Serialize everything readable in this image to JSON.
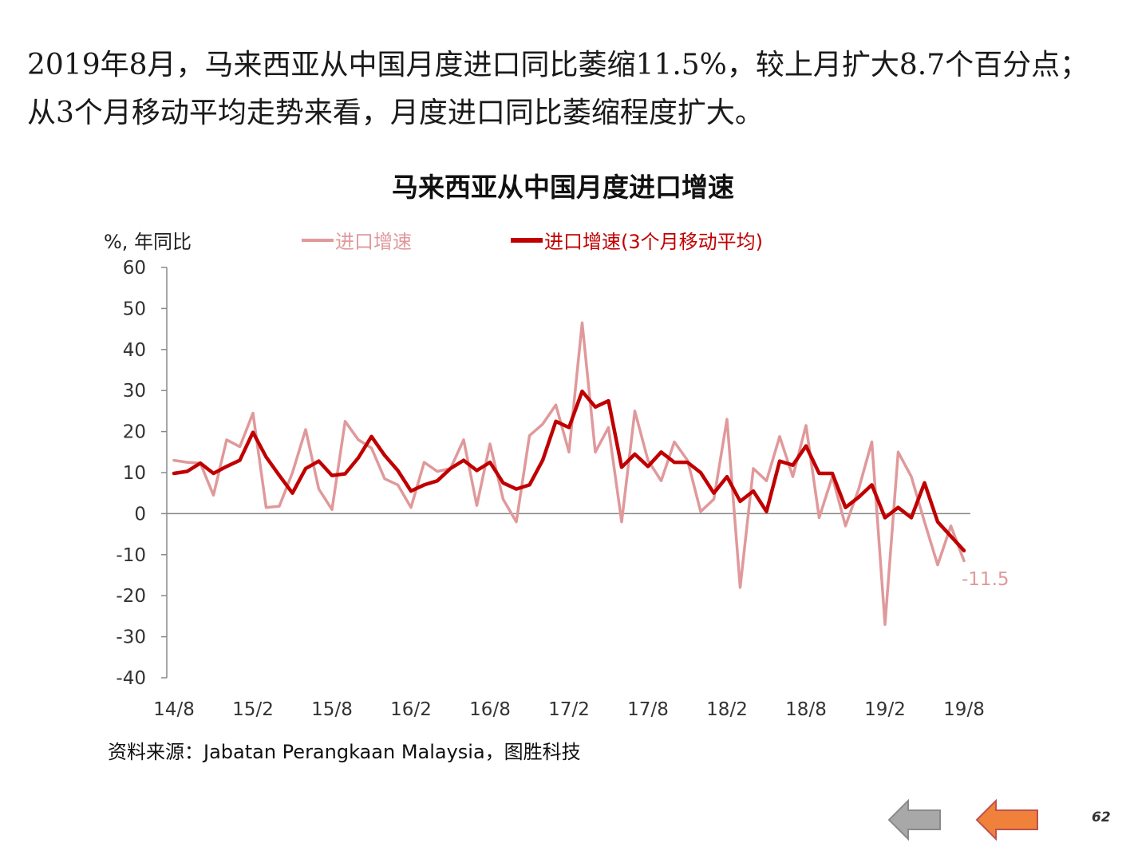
{
  "headline": "2019年8月，马来西亚从中国月度进口同比萎缩11.5%，较上月扩大8.7个百分点；从3个月移动平均走势来看，月度进口同比萎缩程度扩大。",
  "source": "资料来源：Jabatan Perangkaan Malaysia，图胜科技",
  "page_number": "62",
  "nav": {
    "prev_icon": "left-arrow-gray",
    "next_icon": "left-arrow-orange"
  },
  "colors": {
    "monthly": "#e0999b",
    "moving_avg": "#c00000",
    "nav_prev": "#a8a8a8",
    "nav_next": "#f0813a"
  },
  "chart_data": {
    "type": "line",
    "title": "马来西亚从中国月度进口增速",
    "ylabel": "%, 年同比",
    "ylim": [
      -40,
      60
    ],
    "yticks": [
      60,
      50,
      40,
      30,
      20,
      10,
      0,
      -10,
      -20,
      -30,
      -40
    ],
    "xticks": [
      "14/8",
      "15/2",
      "15/8",
      "16/2",
      "16/8",
      "17/2",
      "17/8",
      "18/2",
      "18/8",
      "19/2",
      "19/8"
    ],
    "x": [
      "14/8",
      "14/9",
      "14/10",
      "14/11",
      "14/12",
      "15/1",
      "15/2",
      "15/3",
      "15/4",
      "15/5",
      "15/6",
      "15/7",
      "15/8",
      "15/9",
      "15/10",
      "15/11",
      "15/12",
      "16/1",
      "16/2",
      "16/3",
      "16/4",
      "16/5",
      "16/6",
      "16/7",
      "16/8",
      "16/9",
      "16/10",
      "16/11",
      "16/12",
      "17/1",
      "17/2",
      "17/3",
      "17/4",
      "17/5",
      "17/6",
      "17/7",
      "17/8",
      "17/9",
      "17/10",
      "17/11",
      "17/12",
      "18/1",
      "18/2",
      "18/3",
      "18/4",
      "18/5",
      "18/6",
      "18/7",
      "18/8",
      "18/9",
      "18/10",
      "18/11",
      "18/12",
      "19/1",
      "19/2",
      "19/3",
      "19/4",
      "19/5",
      "19/6",
      "19/7",
      "19/8"
    ],
    "series": [
      {
        "name": "进口增速",
        "color": "#e0999b",
        "values": [
          13,
          12.5,
          12.3,
          4.5,
          18,
          16.3,
          24.5,
          1.5,
          1.8,
          10,
          20.5,
          6,
          1,
          22.5,
          18,
          16,
          8.5,
          7,
          1.5,
          12.5,
          10.3,
          11,
          18,
          2,
          17,
          3.5,
          -2,
          19,
          21.8,
          26.5,
          15,
          46.5,
          15,
          21,
          -2,
          25,
          13,
          8,
          17.5,
          13,
          0.5,
          3.5,
          23,
          -18,
          11,
          8,
          18.8,
          9,
          21.5,
          -1,
          9,
          -3,
          6,
          17.5,
          -27,
          15,
          9,
          -2,
          -12.5,
          -3,
          -11.5
        ]
      },
      {
        "name": "进口增速(3个月移动平均)",
        "color": "#c00000",
        "values": [
          9.8,
          10.3,
          12.3,
          9.8,
          11.5,
          13,
          19.8,
          13.8,
          9.3,
          5,
          11,
          12.8,
          9.3,
          9.7,
          13.6,
          18.8,
          14.2,
          10.5,
          5.5,
          7,
          8,
          11,
          13,
          10.5,
          12.5,
          7.5,
          6,
          7,
          13,
          22.5,
          21,
          29.8,
          26,
          27.5,
          11.3,
          14.5,
          11.5,
          15,
          12.5,
          12.5,
          10,
          5,
          9,
          3,
          5.5,
          0.5,
          12.8,
          11.8,
          16.5,
          9.8,
          9.8,
          1.5,
          4,
          7,
          -1,
          1.5,
          -1,
          7.5,
          -2,
          -5.5,
          -9
        ]
      }
    ],
    "annotations": [
      {
        "x": "19/8",
        "text": "-11.5",
        "color": "#e0999b"
      }
    ],
    "grid": false,
    "legend_placement": "top"
  }
}
